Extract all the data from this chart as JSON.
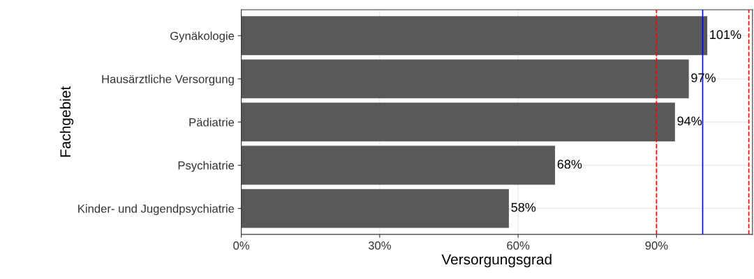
{
  "chart_data": {
    "type": "bar",
    "orientation": "horizontal",
    "xlabel": "Versorgungsgrad",
    "ylabel": "Fachgebiet",
    "categories": [
      "Gynäkologie",
      "Hausärztliche Versorgung",
      "Pädiatrie",
      "Psychiatrie",
      "Kinder- und Jugendpsychiatrie"
    ],
    "values": [
      101,
      97,
      94,
      68,
      58
    ],
    "value_labels": [
      "101%",
      "97%",
      "94%",
      "68%",
      "58%"
    ],
    "color": "#595959",
    "xlim": [
      0,
      110.8
    ],
    "xticks": [
      {
        "value": 0,
        "label": "0%"
      },
      {
        "value": 30,
        "label": "30%"
      },
      {
        "value": 60,
        "label": "60%"
      },
      {
        "value": 90,
        "label": "90%"
      }
    ],
    "ref_lines": [
      {
        "axis": "x",
        "value": 90,
        "color": "#ff0000",
        "line_style": "dashed"
      },
      {
        "axis": "x",
        "value": 100,
        "color": "#0000ff",
        "line_style": "solid"
      },
      {
        "axis": "x",
        "value": 110,
        "color": "#ff0000",
        "line_style": "dashed"
      }
    ],
    "grid": true
  }
}
